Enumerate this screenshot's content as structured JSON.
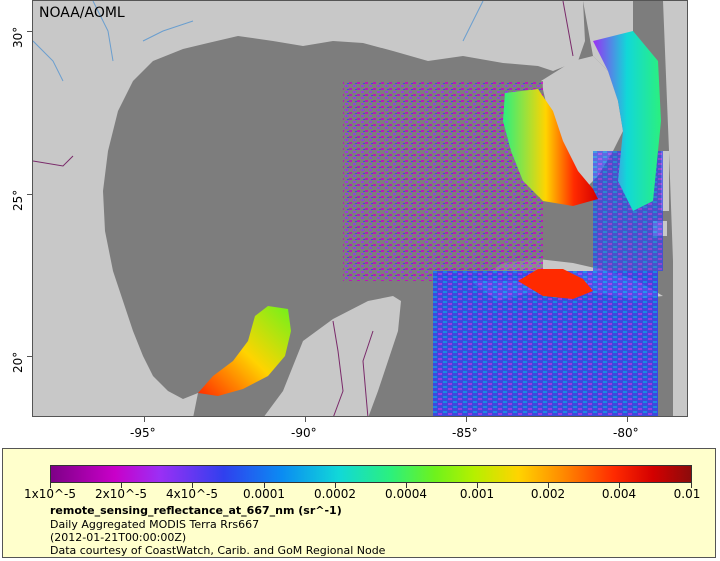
{
  "map": {
    "attribution": "NOAA/AOML",
    "x_ticks": [
      "-95°",
      "-90°",
      "-85°",
      "-80°"
    ],
    "y_ticks": [
      "30°",
      "25°",
      "20°"
    ],
    "colors": {
      "ocean_no_data": "#7d7d7d",
      "land": "#c8c8c8",
      "rivers": "#6a9ecf",
      "borders": "#7a2a6a"
    }
  },
  "legend": {
    "colorbar_labels": [
      "1x10^-5",
      "2x10^-5",
      "4x10^-5",
      "0.0001",
      "0.0002",
      "0.0004",
      "0.001",
      "0.002",
      "0.004",
      "0.01"
    ],
    "variable": "remote_sensing_reflectance_at_667_nm (sr^-1)",
    "dataset": "Daily Aggregated MODIS Terra Rrs667",
    "time": "(2012-01-21T00:00:00Z)",
    "credit": "Data courtesy of CoastWatch, Carib. and GoM Regional Node"
  }
}
